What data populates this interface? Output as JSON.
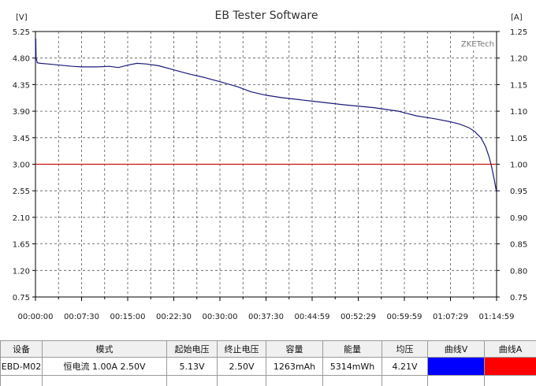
{
  "window": {
    "title": "EB Tester Software"
  },
  "chart_data": {
    "type": "line",
    "title": "EB Tester Software",
    "left_unit": "[V]",
    "right_unit": "[A]",
    "watermark": "ZKETech",
    "y_left_ticks": [
      "5.25",
      "4.80",
      "4.35",
      "3.90",
      "3.45",
      "3.00",
      "2.55",
      "2.10",
      "1.65",
      "1.20",
      "0.75"
    ],
    "y_right_ticks": [
      "1.25",
      "1.20",
      "1.15",
      "1.10",
      "1.05",
      "1.00",
      "0.95",
      "0.90",
      "0.85",
      "0.80",
      "0.75"
    ],
    "x_ticks": [
      "00:00:00",
      "00:07:30",
      "00:15:00",
      "00:22:30",
      "00:30:00",
      "00:37:30",
      "00:44:59",
      "00:52:29",
      "00:59:59",
      "01:07:29",
      "01:14:59"
    ],
    "ylim_left": [
      0.75,
      5.25
    ],
    "ylim_right": [
      0.75,
      1.25
    ],
    "xlim_minutes": [
      0,
      75
    ],
    "grid": true,
    "series": [
      {
        "axis": "left",
        "color": "#1a1a7a",
        "x_minutes": [
          0,
          0.05,
          0.1,
          0.3,
          0.8,
          2,
          4,
          6,
          7.5,
          10,
          12,
          13.5,
          15,
          16.5,
          18,
          20,
          22.5,
          25,
          27.5,
          30,
          33,
          35,
          37.5,
          40,
          45,
          50,
          55,
          59,
          62,
          65,
          67.5,
          69,
          70.5,
          71.5,
          72.5,
          73.2,
          73.8,
          74.2,
          74.6,
          75
        ],
        "values": [
          4.75,
          5.13,
          4.8,
          4.72,
          4.71,
          4.7,
          4.68,
          4.66,
          4.65,
          4.65,
          4.66,
          4.64,
          4.68,
          4.71,
          4.7,
          4.67,
          4.6,
          4.53,
          4.47,
          4.4,
          4.31,
          4.23,
          4.17,
          4.13,
          4.07,
          4.01,
          3.96,
          3.9,
          3.82,
          3.77,
          3.72,
          3.68,
          3.62,
          3.55,
          3.44,
          3.3,
          3.12,
          2.95,
          2.75,
          2.52
        ]
      },
      {
        "axis": "right",
        "color": "#cc1111",
        "x_minutes": [
          0,
          75
        ],
        "values": [
          1.0,
          1.0
        ]
      }
    ]
  },
  "info_table": {
    "headers": [
      "设备",
      "模式",
      "起始电压",
      "终止电压",
      "容量",
      "能量",
      "均压",
      "曲线V",
      "曲线A"
    ],
    "row": [
      "EBD-M02",
      "恒电流  1.00A  2.50V",
      "5.13V",
      "2.50V",
      "1263mAh",
      "5314mWh",
      "4.21V",
      "",
      ""
    ],
    "swatch_v_color": "#0000ff",
    "swatch_a_color": "#ff0000"
  }
}
